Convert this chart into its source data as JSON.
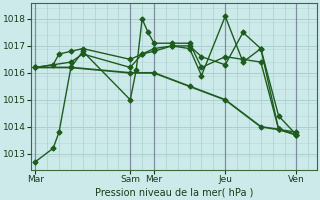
{
  "title": "Pression niveau de la mer( hPa )",
  "background_color": "#cceaea",
  "grid_color": "#aacfcf",
  "line_color": "#1e5c1e",
  "ylim": [
    1012.4,
    1018.6
  ],
  "yticks": [
    1013,
    1014,
    1015,
    1016,
    1017,
    1018
  ],
  "day_labels": [
    "Mar",
    "Sam",
    "Mer",
    "Jeu",
    "Ven"
  ],
  "day_positions": [
    0,
    96,
    120,
    192,
    264
  ],
  "xlim": [
    -4,
    285
  ],
  "lines": [
    {
      "x": [
        0,
        18,
        24,
        36,
        48,
        96,
        102,
        108,
        114,
        120,
        138,
        156,
        168,
        192,
        210,
        228,
        246,
        264
      ],
      "y": [
        1012.7,
        1013.2,
        1013.8,
        1016.2,
        1016.8,
        1015.0,
        1016.1,
        1018.0,
        1017.5,
        1017.1,
        1017.1,
        1017.1,
        1016.2,
        1016.6,
        1016.5,
        1016.4,
        1013.9,
        1013.7
      ],
      "style": "-",
      "marker": "D",
      "markersize": 2.5,
      "linewidth": 1.0
    },
    {
      "x": [
        0,
        18,
        24,
        36,
        48,
        96,
        108,
        120,
        138,
        156,
        168,
        192,
        210,
        228,
        246,
        264
      ],
      "y": [
        1016.2,
        1016.3,
        1016.7,
        1016.8,
        1016.9,
        1016.5,
        1016.7,
        1016.9,
        1017.0,
        1017.0,
        1016.6,
        1016.3,
        1017.5,
        1016.9,
        1013.9,
        1013.8
      ],
      "style": "-",
      "marker": "D",
      "markersize": 2.5,
      "linewidth": 1.0
    },
    {
      "x": [
        0,
        36,
        48,
        96,
        108,
        120,
        138,
        156,
        168,
        192,
        210,
        228,
        246,
        264
      ],
      "y": [
        1016.2,
        1016.4,
        1016.7,
        1016.2,
        1016.7,
        1016.8,
        1017.0,
        1016.9,
        1015.9,
        1018.1,
        1016.4,
        1016.9,
        1014.4,
        1013.7
      ],
      "style": "-",
      "marker": "D",
      "markersize": 2.5,
      "linewidth": 1.0
    },
    {
      "x": [
        0,
        36,
        96,
        120,
        156,
        192,
        228,
        246,
        264
      ],
      "y": [
        1016.2,
        1016.2,
        1016.0,
        1016.0,
        1015.5,
        1015.0,
        1014.0,
        1013.9,
        1013.7
      ],
      "style": "-",
      "marker": "D",
      "markersize": 2.5,
      "linewidth": 1.3
    }
  ],
  "separator_positions": [
    0,
    96,
    120,
    192,
    264
  ],
  "separator_color": "#5a5a7a",
  "minor_grid_color": "#b8d8d8",
  "minor_x_step": 12
}
